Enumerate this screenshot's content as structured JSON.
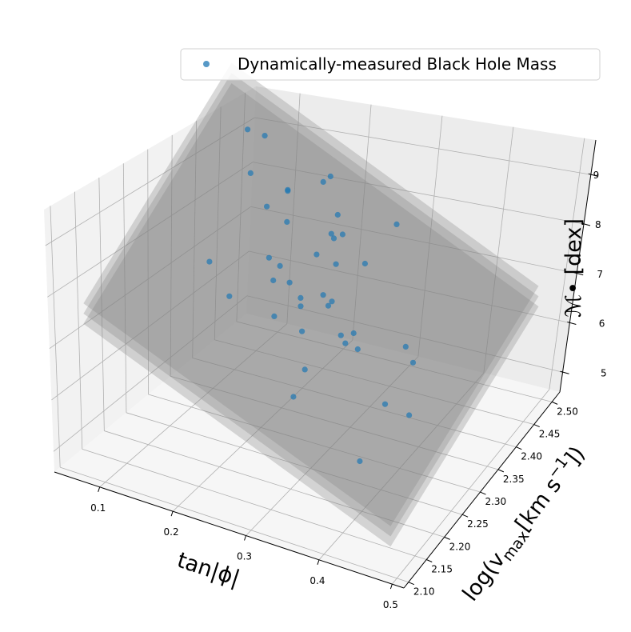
{
  "chart_data": {
    "type": "scatter3d",
    "title": "",
    "xlabel": "tan|ϕ|",
    "ylabel": {
      "pre": "log(v",
      "sub": "max",
      "mid": "[km s",
      "sup": "−1",
      "post": "])"
    },
    "zlabel": "ℳ• [dex]",
    "xlim": [
      0.038,
      0.516
    ],
    "ylim": [
      2.087,
      2.522
    ],
    "zlim": [
      4.6,
      9.7
    ],
    "xticks": [
      "0.1",
      "0.2",
      "0.3",
      "0.4",
      "0.5"
    ],
    "yticks": [
      "2.10",
      "2.15",
      "2.20",
      "2.25",
      "2.30",
      "2.35",
      "2.40",
      "2.45",
      "2.50"
    ],
    "zticks": [
      "5",
      "6",
      "7",
      "8",
      "9"
    ],
    "grid": true,
    "legend": {
      "position": "top-right",
      "entries": [
        "Dynamically-measured Black Hole Mass"
      ]
    },
    "colors": {
      "points": "#1f77b4",
      "planes": "#808080",
      "pane_left": "#f2f2f2",
      "pane_right": "#ececec",
      "pane_floor": "#f6f6f6"
    },
    "series": [
      {
        "name": "Dynamically-measured Black Hole Mass",
        "points": [
          [
            0.115,
            2.469,
            8.31
          ],
          [
            0.135,
            2.476,
            8.22
          ],
          [
            0.143,
            2.42,
            8.02
          ],
          [
            0.217,
            2.472,
            7.74
          ],
          [
            0.221,
            2.484,
            7.76
          ],
          [
            0.188,
            2.432,
            7.8
          ],
          [
            0.189,
            2.43,
            7.8
          ],
          [
            0.178,
            2.394,
            7.76
          ],
          [
            0.206,
            2.393,
            7.6
          ],
          [
            0.25,
            2.445,
            7.49
          ],
          [
            0.311,
            2.485,
            7.24
          ],
          [
            0.255,
            2.417,
            7.39
          ],
          [
            0.266,
            2.426,
            7.35
          ],
          [
            0.26,
            2.414,
            7.35
          ],
          [
            0.253,
            2.38,
            7.3
          ],
          [
            0.21,
            2.335,
            7.43
          ],
          [
            0.225,
            2.335,
            7.34
          ],
          [
            0.277,
            2.385,
            7.18
          ],
          [
            0.304,
            2.411,
            7.09
          ],
          [
            0.156,
            2.279,
            7.59
          ],
          [
            0.227,
            2.312,
            7.27
          ],
          [
            0.244,
            2.323,
            7.21
          ],
          [
            0.195,
            2.255,
            7.31
          ],
          [
            0.283,
            2.337,
            7.03
          ],
          [
            0.263,
            2.315,
            7.07
          ],
          [
            0.295,
            2.337,
            6.96
          ],
          [
            0.268,
            2.305,
            7.02
          ],
          [
            0.294,
            2.329,
            6.94
          ],
          [
            0.249,
            2.27,
            7.04
          ],
          [
            0.284,
            2.276,
            6.86
          ],
          [
            0.323,
            2.305,
            6.71
          ],
          [
            0.334,
            2.318,
            6.69
          ],
          [
            0.332,
            2.299,
            6.65
          ],
          [
            0.347,
            2.303,
            6.57
          ],
          [
            0.391,
            2.347,
            6.44
          ],
          [
            0.407,
            2.335,
            6.31
          ],
          [
            0.309,
            2.233,
            6.61
          ],
          [
            0.314,
            2.191,
            6.47
          ],
          [
            0.405,
            2.261,
            6.14
          ],
          [
            0.434,
            2.269,
            5.99
          ],
          [
            0.414,
            2.172,
            5.85
          ]
        ]
      }
    ],
    "planes": [
      {
        "x": [
          0.067,
          0.487
        ],
        "y": [
          2.109,
          2.522
        ],
        "z_corners": [
          7.85,
          5.48,
          6.54,
          8.92
        ]
      },
      {
        "x": [
          0.067,
          0.487
        ],
        "y": [
          2.109,
          2.522
        ],
        "z_corners": [
          7.65,
          5.28,
          6.34,
          8.72
        ]
      },
      {
        "x": [
          0.067,
          0.487
        ],
        "y": [
          2.109,
          2.522
        ],
        "z_corners": [
          7.45,
          5.08,
          6.14,
          8.52
        ]
      }
    ]
  }
}
